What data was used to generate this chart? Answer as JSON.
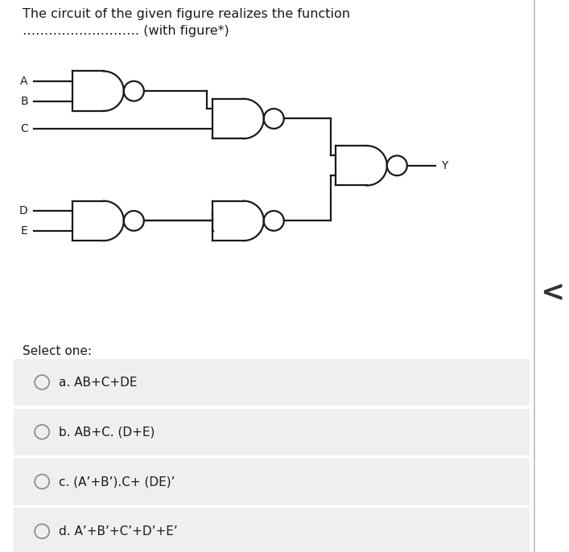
{
  "title_line1": "The circuit of the given figure realizes the function",
  "title_line2": "……………………… (with figure*)",
  "options": [
    "a. AB+C+DE",
    "b. AB+C. (D+E)",
    "c. (A’+B’).C+ (DE)’",
    "d. A’+B’+C’+D’+E’"
  ],
  "select_one_text": "Select one:",
  "bg_color": "#ffffff",
  "option_bg_color": "#efefef",
  "text_color": "#1a1a1a",
  "gate_color": "#1a1a1a",
  "lw": 1.6,
  "bubble_r": 0.018
}
